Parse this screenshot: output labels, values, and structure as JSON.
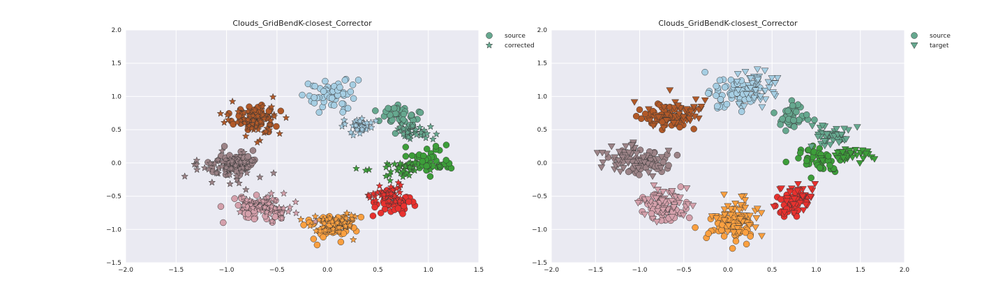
{
  "chart_data": [
    {
      "type": "scatter",
      "title": "Clouds_GridBendK-closest_Corrector",
      "xlabel": "",
      "ylabel": "",
      "xlim": [
        -2.0,
        1.5
      ],
      "ylim": [
        -1.5,
        2.0
      ],
      "x_ticks": [
        "−2.0",
        "−1.5",
        "−1.0",
        "−0.5",
        "0.0",
        "0.5",
        "1.0",
        "1.5"
      ],
      "y_ticks": [
        "−1.5",
        "−1.0",
        "−0.5",
        "0.0",
        "0.5",
        "1.0",
        "1.5",
        "2.0"
      ],
      "grid": true,
      "legend": {
        "placement": "outside-top-right",
        "entries": [
          {
            "label": "source",
            "marker": "circle"
          },
          {
            "label": "corrected",
            "marker": "star"
          }
        ]
      },
      "series": [
        {
          "marker": "circle",
          "role": "source",
          "color": "#a6cee3",
          "center": [
            0.05,
            1.02
          ],
          "spread": [
            0.14,
            0.12
          ],
          "n": 55
        },
        {
          "marker": "circle",
          "role": "source",
          "color": "#b15928",
          "center": [
            -0.72,
            0.68
          ],
          "spread": [
            0.13,
            0.08
          ],
          "n": 55
        },
        {
          "marker": "circle",
          "role": "source",
          "color": "#66a88f",
          "center": [
            0.72,
            0.68
          ],
          "spread": [
            0.1,
            0.1
          ],
          "n": 45
        },
        {
          "marker": "circle",
          "role": "source",
          "color": "#9c8387",
          "center": [
            -0.92,
            0.0
          ],
          "spread": [
            0.12,
            0.1
          ],
          "n": 55
        },
        {
          "marker": "circle",
          "role": "source",
          "color": "#3d9e3a",
          "center": [
            1.0,
            0.05
          ],
          "spread": [
            0.12,
            0.1
          ],
          "n": 45
        },
        {
          "marker": "circle",
          "role": "source",
          "color": "#d4a0ab",
          "center": [
            -0.7,
            -0.7
          ],
          "spread": [
            0.14,
            0.1
          ],
          "n": 55
        },
        {
          "marker": "circle",
          "role": "source",
          "color": "#e8312e",
          "center": [
            0.68,
            -0.62
          ],
          "spread": [
            0.1,
            0.1
          ],
          "n": 45
        },
        {
          "marker": "circle",
          "role": "source",
          "color": "#fba040",
          "center": [
            0.02,
            -0.98
          ],
          "spread": [
            0.12,
            0.1
          ],
          "n": 55
        },
        {
          "marker": "star",
          "role": "corrected",
          "color": "#a6cee3",
          "center": [
            0.3,
            0.55
          ],
          "spread": [
            0.07,
            0.06
          ],
          "n": 35
        },
        {
          "marker": "star",
          "role": "corrected",
          "color": "#b15928",
          "center": [
            -0.72,
            0.62
          ],
          "spread": [
            0.17,
            0.14
          ],
          "n": 55
        },
        {
          "marker": "star",
          "role": "corrected",
          "color": "#66a88f",
          "center": [
            0.85,
            0.45
          ],
          "spread": [
            0.09,
            0.07
          ],
          "n": 35
        },
        {
          "marker": "star",
          "role": "corrected",
          "color": "#9c8387",
          "center": [
            -0.98,
            -0.08
          ],
          "spread": [
            0.17,
            0.12
          ],
          "n": 55
        },
        {
          "marker": "star",
          "role": "corrected",
          "color": "#3d9e3a",
          "center": [
            0.75,
            -0.05
          ],
          "spread": [
            0.16,
            0.07
          ],
          "n": 35
        },
        {
          "marker": "star",
          "role": "corrected",
          "color": "#d4a0ab",
          "center": [
            -0.6,
            -0.66
          ],
          "spread": [
            0.13,
            0.09
          ],
          "n": 45
        },
        {
          "marker": "star",
          "role": "corrected",
          "color": "#e8312e",
          "center": [
            0.6,
            -0.48
          ],
          "spread": [
            0.08,
            0.08
          ],
          "n": 35
        },
        {
          "marker": "star",
          "role": "corrected",
          "color": "#fba040",
          "center": [
            0.12,
            -0.88
          ],
          "spread": [
            0.13,
            0.09
          ],
          "n": 45
        }
      ]
    },
    {
      "type": "scatter",
      "title": "Clouds_GridBendK-closest_Corrector",
      "xlabel": "",
      "ylabel": "",
      "xlim": [
        -2.0,
        2.0
      ],
      "ylim": [
        -1.5,
        2.0
      ],
      "x_ticks": [
        "−2.0",
        "−1.5",
        "−1.0",
        "−0.5",
        "0.0",
        "0.5",
        "1.0",
        "1.5",
        "2.0"
      ],
      "y_ticks": [
        "−1.5",
        "−1.0",
        "−0.5",
        "0.0",
        "0.5",
        "1.0",
        "1.5",
        "2.0"
      ],
      "grid": true,
      "legend": {
        "placement": "outside-top-right",
        "entries": [
          {
            "label": "source",
            "marker": "circle"
          },
          {
            "label": "target",
            "marker": "triangle-down"
          }
        ]
      },
      "series": [
        {
          "marker": "circle",
          "role": "source",
          "color": "#a6cee3",
          "center": [
            0.05,
            1.02
          ],
          "spread": [
            0.14,
            0.12
          ],
          "n": 55
        },
        {
          "marker": "circle",
          "role": "source",
          "color": "#b15928",
          "center": [
            -0.72,
            0.68
          ],
          "spread": [
            0.13,
            0.08
          ],
          "n": 55
        },
        {
          "marker": "circle",
          "role": "source",
          "color": "#66a88f",
          "center": [
            0.72,
            0.68
          ],
          "spread": [
            0.1,
            0.1
          ],
          "n": 45
        },
        {
          "marker": "circle",
          "role": "source",
          "color": "#9c8387",
          "center": [
            -0.92,
            0.0
          ],
          "spread": [
            0.12,
            0.1
          ],
          "n": 55
        },
        {
          "marker": "circle",
          "role": "source",
          "color": "#3d9e3a",
          "center": [
            1.0,
            0.05
          ],
          "spread": [
            0.12,
            0.1
          ],
          "n": 45
        },
        {
          "marker": "circle",
          "role": "source",
          "color": "#d4a0ab",
          "center": [
            -0.7,
            -0.7
          ],
          "spread": [
            0.14,
            0.1
          ],
          "n": 55
        },
        {
          "marker": "circle",
          "role": "source",
          "color": "#e8312e",
          "center": [
            0.68,
            -0.62
          ],
          "spread": [
            0.1,
            0.1
          ],
          "n": 45
        },
        {
          "marker": "circle",
          "role": "source",
          "color": "#fba040",
          "center": [
            0.02,
            -0.98
          ],
          "spread": [
            0.12,
            0.1
          ],
          "n": 55
        },
        {
          "marker": "triangle-down",
          "role": "target",
          "color": "#a6cee3",
          "center": [
            0.35,
            1.15
          ],
          "spread": [
            0.12,
            0.16
          ],
          "n": 45
        },
        {
          "marker": "triangle-down",
          "role": "target",
          "color": "#b15928",
          "center": [
            -0.6,
            0.75
          ],
          "spread": [
            0.18,
            0.12
          ],
          "n": 50
        },
        {
          "marker": "triangle-down",
          "role": "target",
          "color": "#66a88f",
          "center": [
            1.2,
            0.42
          ],
          "spread": [
            0.11,
            0.08
          ],
          "n": 40
        },
        {
          "marker": "triangle-down",
          "role": "target",
          "color": "#9c8387",
          "center": [
            -1.1,
            0.08
          ],
          "spread": [
            0.18,
            0.1
          ],
          "n": 50
        },
        {
          "marker": "triangle-down",
          "role": "target",
          "color": "#3d9e3a",
          "center": [
            1.4,
            0.12
          ],
          "spread": [
            0.13,
            0.05
          ],
          "n": 40
        },
        {
          "marker": "triangle-down",
          "role": "target",
          "color": "#d4a0ab",
          "center": [
            -0.75,
            -0.55
          ],
          "spread": [
            0.13,
            0.12
          ],
          "n": 50
        },
        {
          "marker": "triangle-down",
          "role": "target",
          "color": "#e8312e",
          "center": [
            0.75,
            -0.5
          ],
          "spread": [
            0.09,
            0.12
          ],
          "n": 40
        },
        {
          "marker": "triangle-down",
          "role": "target",
          "color": "#fba040",
          "center": [
            0.12,
            -0.78
          ],
          "spread": [
            0.12,
            0.12
          ],
          "n": 50
        }
      ]
    }
  ]
}
